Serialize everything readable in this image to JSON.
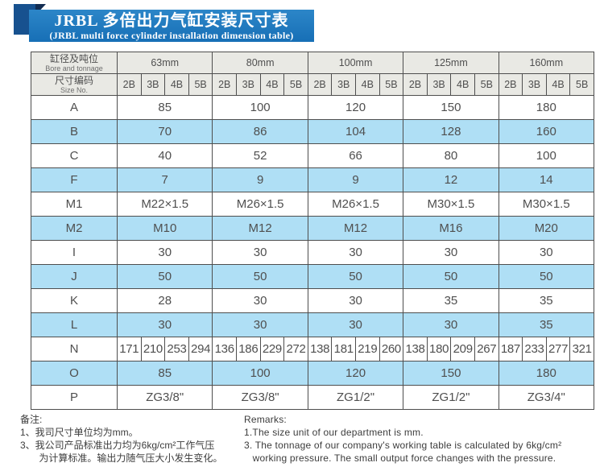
{
  "title": {
    "zh": "JRBL 多倍出力气缸安装尺寸表",
    "en": "(JRBL multi force cylinder installation dimension table)"
  },
  "table": {
    "corner": {
      "row1_zh": "缸径及吨位",
      "row1_en": "Bore and tonnage",
      "row2_zh": "尺寸编码",
      "row2_en": "Size No."
    },
    "groups": [
      "63mm",
      "80mm",
      "100mm",
      "125mm",
      "160mm"
    ],
    "sub_columns": [
      "2B",
      "3B",
      "4B",
      "5B"
    ],
    "rows": [
      {
        "label": "A",
        "merged": true,
        "values": [
          "85",
          "100",
          "120",
          "150",
          "180"
        ]
      },
      {
        "label": "B",
        "merged": true,
        "values": [
          "70",
          "86",
          "104",
          "128",
          "160"
        ]
      },
      {
        "label": "C",
        "merged": true,
        "values": [
          "40",
          "52",
          "66",
          "80",
          "100"
        ]
      },
      {
        "label": "F",
        "merged": true,
        "values": [
          "7",
          "9",
          "9",
          "12",
          "14"
        ]
      },
      {
        "label": "M1",
        "merged": true,
        "values": [
          "M22×1.5",
          "M26×1.5",
          "M26×1.5",
          "M30×1.5",
          "M30×1.5"
        ]
      },
      {
        "label": "M2",
        "merged": true,
        "values": [
          "M10",
          "M12",
          "M12",
          "M16",
          "M20"
        ]
      },
      {
        "label": "I",
        "merged": true,
        "values": [
          "30",
          "30",
          "30",
          "30",
          "30"
        ]
      },
      {
        "label": "J",
        "merged": true,
        "values": [
          "50",
          "50",
          "50",
          "50",
          "50"
        ]
      },
      {
        "label": "K",
        "merged": true,
        "values": [
          "28",
          "30",
          "30",
          "35",
          "35"
        ]
      },
      {
        "label": "L",
        "merged": true,
        "values": [
          "30",
          "30",
          "30",
          "30",
          "35"
        ]
      },
      {
        "label": "N",
        "merged": false,
        "values": [
          "171",
          "210",
          "253",
          "294",
          "136",
          "186",
          "229",
          "272",
          "138",
          "181",
          "219",
          "260",
          "138",
          "180",
          "209",
          "267",
          "187",
          "233",
          "277",
          "321"
        ]
      },
      {
        "label": "O",
        "merged": true,
        "values": [
          "85",
          "100",
          "120",
          "150",
          "180"
        ]
      },
      {
        "label": "P",
        "merged": true,
        "values": [
          "ZG3/8\"",
          "ZG3/8\"",
          "ZG1/2\"",
          "ZG1/2\"",
          "ZG3/4\""
        ]
      }
    ]
  },
  "notes_zh": {
    "heading": "备注:",
    "lines": [
      "1、我司尺寸单位均为mm。",
      "3、我公司产品标准出力均为6kg/cm²工作气压",
      "       为计算标准。输出力随气压大小发生变化。"
    ]
  },
  "notes_en": {
    "heading": "Remarks:",
    "lines": [
      "1.The size unit of our department is mm.",
      "3. The tonnage of our company's working table is calculated by 6kg/cm²",
      "   working pressure. The small output force changes with the pressure."
    ]
  },
  "colors": {
    "banner_blue": "#1d78c0",
    "ribbon_blue": "#17518f",
    "fold_navy": "#122c52",
    "row_blue": "#afdff5",
    "header_gray": "#e9e9e4",
    "border_gray": "#4e4e4e",
    "text_gray": "#4f4f4f"
  }
}
